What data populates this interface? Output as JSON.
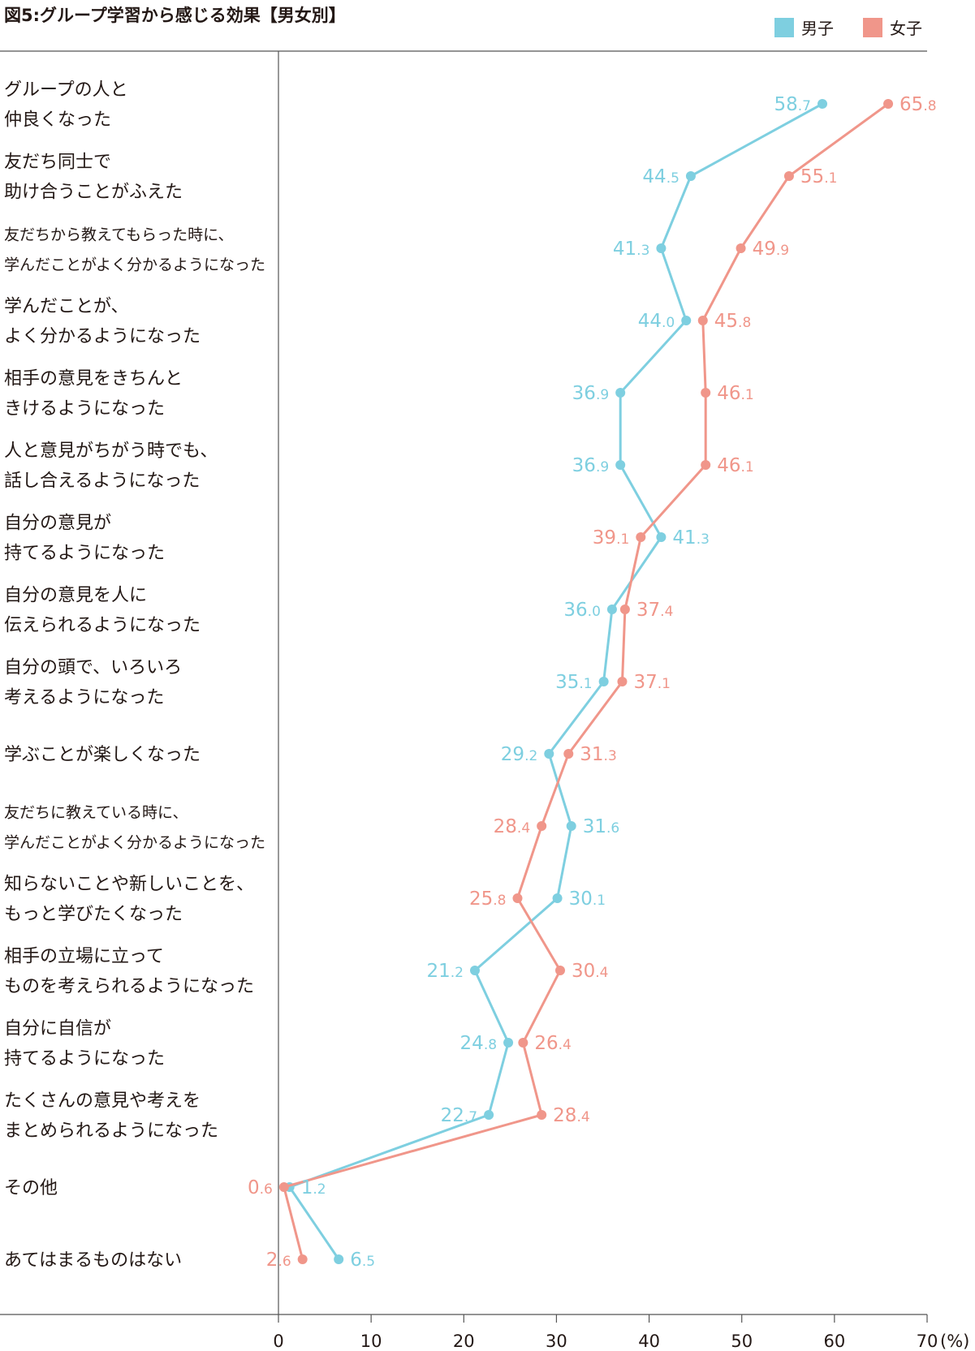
{
  "chart_data": {
    "type": "line",
    "title": "図5:グループ学習から感じる効果【男女別】",
    "unit_label": "(%)",
    "xlim": [
      0,
      70
    ],
    "x_ticks": [
      0,
      10,
      20,
      30,
      40,
      50,
      60,
      70
    ],
    "legend_placement": "top-right",
    "categories": [
      "グループの人と|仲良くなった",
      "友だち同士で|助け合うことがふえた",
      "友だちから教えてもらった時に、|学んだことがよく分かるようになった",
      "学んだことが、|よく分かるようになった",
      "相手の意見をきちんと|きけるようになった",
      "人と意見がちがう時でも、|話し合えるようになった",
      "自分の意見が|持てるようになった",
      "自分の意見を人に|伝えられるようになった",
      "自分の頭で、いろいろ|考えるようになった",
      "学ぶことが楽しくなった",
      "友だちに教えている時に、|学んだことがよく分かるようになった",
      "知らないことや新しいことを、|もっと学びたくなった",
      "相手の立場に立って|ものを考えられるようになった",
      "自分に自信が|持てるようになった",
      "たくさんの意見や考えを|まとめられるようになった",
      "その他",
      "あてはまるものはない"
    ],
    "series": [
      {
        "name": "男子",
        "color": "#7ecfe0",
        "values": [
          58.7,
          44.5,
          41.3,
          44.0,
          36.9,
          36.9,
          41.3,
          36.0,
          35.1,
          29.2,
          31.6,
          30.1,
          21.2,
          24.8,
          22.7,
          1.2,
          6.5
        ]
      },
      {
        "name": "女子",
        "color": "#f0968a",
        "values": [
          65.8,
          55.1,
          49.9,
          45.8,
          46.1,
          46.1,
          39.1,
          37.4,
          37.1,
          31.3,
          28.4,
          25.8,
          30.4,
          26.4,
          28.4,
          0.6,
          2.6
        ]
      }
    ]
  }
}
